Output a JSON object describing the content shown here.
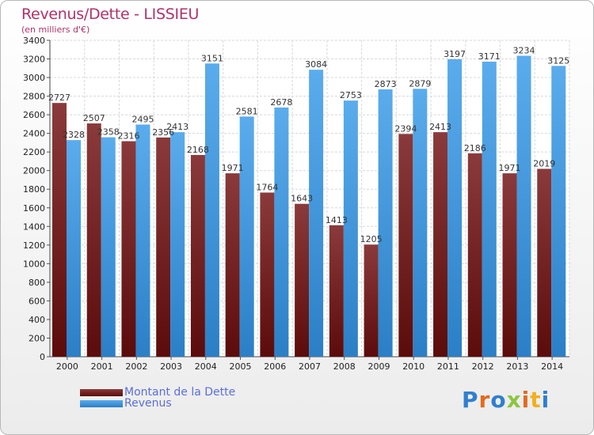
{
  "colors": {
    "debt_dark": "#5c0b0b",
    "debt_light": "#8a3a3a",
    "revenue_dark": "#2b7fc6",
    "revenue_light": "#5aacec",
    "title": "#b0326a",
    "legend_text": "#5a6fd6"
  },
  "header": {
    "title": "Revenus/Dette - LISSIEU",
    "subtitle": "(en milliers d'€)"
  },
  "legend": {
    "debt_label": "Montant de la Dette",
    "revenue_label": "Revenus"
  },
  "logo": {
    "text": "Proxiti"
  },
  "chart_data": {
    "type": "bar",
    "title": "Revenus/Dette - LISSIEU",
    "ylabel": "(en milliers d'€)",
    "xlabel": "",
    "ylim": [
      0,
      3400
    ],
    "ytick_step": 200,
    "grid": true,
    "legend_position": "bottom-left",
    "categories": [
      "2000",
      "2001",
      "2002",
      "2003",
      "2004",
      "2005",
      "2006",
      "2007",
      "2008",
      "2009",
      "2010",
      "2011",
      "2012",
      "2013",
      "2014"
    ],
    "series": [
      {
        "name": "Montant de la Dette",
        "values": [
          2727,
          2507,
          2316,
          2356,
          2168,
          1971,
          1764,
          1643,
          1413,
          1205,
          2394,
          2413,
          2186,
          1971,
          2019
        ],
        "labels": [
          "2727",
          "2507",
          "2316",
          "2356",
          "2168",
          "1971",
          "1764",
          "1643",
          "1413",
          "1205",
          "2394",
          "2413",
          "2186",
          "1971",
          "2019"
        ]
      },
      {
        "name": "Revenus",
        "values": [
          2328,
          2358,
          2495,
          2413,
          3151,
          2581,
          2678,
          3084,
          2753,
          2873,
          2879,
          3197,
          3171,
          3234,
          3125
        ],
        "labels": [
          "2328",
          "2358",
          "2495",
          "2413",
          "3151",
          "2581",
          "2678",
          "3084",
          "2753",
          "2873",
          "2879",
          "3197",
          "3171",
          "3234",
          "3125"
        ]
      }
    ]
  }
}
